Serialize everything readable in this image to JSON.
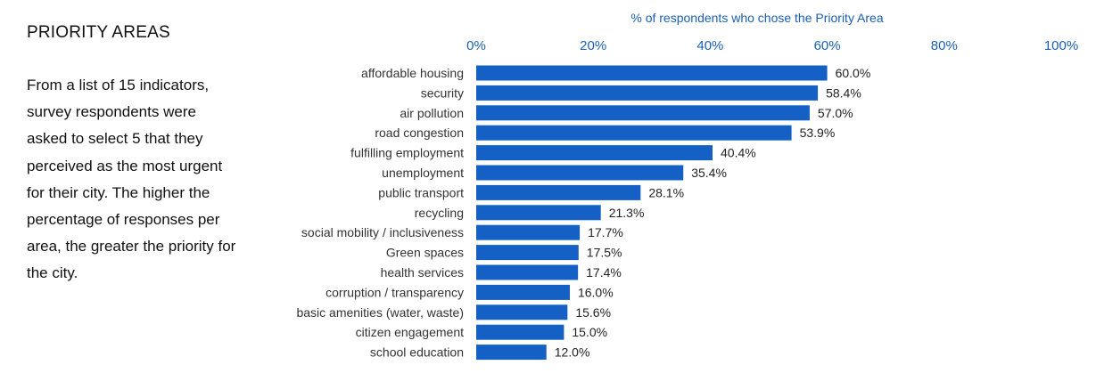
{
  "sidebar": {
    "title": "PRIORITY AREAS",
    "description": "From a list of 15 indicators, survey respondents were asked to select 5 that they perceived as the most urgent for their city. The higher the percentage of responses per area, the greater the priority for the city."
  },
  "chart_data": {
    "type": "bar",
    "orientation": "horizontal",
    "xlabel": "% of respondents who chose the Priority Area",
    "xlim": [
      0,
      100
    ],
    "xticks": [
      "0%",
      "20%",
      "40%",
      "60%",
      "80%",
      "100%"
    ],
    "grid": false,
    "bar_color": "#1560c4",
    "categories": [
      "affordable housing",
      "security",
      "air pollution",
      "road congestion",
      "fulfilling employment",
      "unemployment",
      "public transport",
      "recycling",
      "social mobility / inclusiveness",
      "Green spaces",
      "health services",
      "corruption / transparency",
      "basic amenities (water, waste)",
      "citizen engagement",
      "school education"
    ],
    "values": [
      60.0,
      58.4,
      57.0,
      53.9,
      40.4,
      35.4,
      28.1,
      21.3,
      17.7,
      17.5,
      17.4,
      16.0,
      15.6,
      15.0,
      12.0
    ],
    "value_labels": [
      "60.0%",
      "58.4%",
      "57.0%",
      "53.9%",
      "40.4%",
      "35.4%",
      "28.1%",
      "21.3%",
      "17.7%",
      "17.5%",
      "17.4%",
      "16.0%",
      "15.6%",
      "15.0%",
      "12.0%"
    ]
  }
}
